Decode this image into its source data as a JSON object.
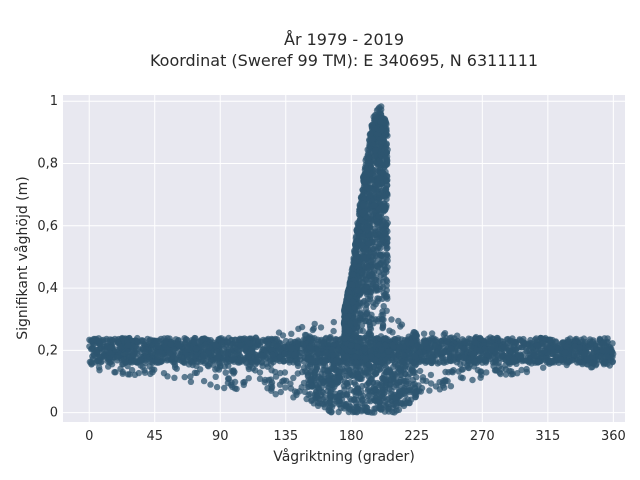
{
  "chart_data": {
    "type": "scatter",
    "title_lines": [
      "År 1979 - 2019",
      "Koordinat (Sweref 99 TM): E 340695, N 6311111"
    ],
    "xlabel": "Vågriktning (grader)",
    "ylabel": "Signifikant våghöjd (m)",
    "xlim": [
      -18,
      368
    ],
    "ylim": [
      -0.03,
      1.02
    ],
    "xticks": [
      0,
      45,
      90,
      135,
      180,
      225,
      270,
      315,
      360
    ],
    "yticks": [
      0,
      0.2,
      0.4,
      0.6,
      0.8,
      1
    ],
    "ytick_labels": [
      "0",
      "0,2",
      "0,4",
      "0,6",
      "0,8",
      "1"
    ],
    "grid": true,
    "marker_color": "#2e5570",
    "plot_bg": "#e8e8f0",
    "grid_color": "#ffffff",
    "ridge": {
      "x": [
        175,
        180,
        185,
        190,
        195,
        200,
        205
      ],
      "ymax": [
        0.33,
        0.44,
        0.64,
        0.83,
        0.95,
        0.99,
        0.93
      ]
    },
    "band_outline": {
      "x": [
        0,
        20,
        45,
        90,
        120,
        150,
        165,
        210,
        230,
        260,
        300,
        330,
        360
      ],
      "y_low": [
        0.14,
        0.12,
        0.12,
        0.08,
        0.06,
        0.03,
        0.0,
        0.0,
        0.06,
        0.1,
        0.13,
        0.14,
        0.15
      ],
      "y_high": [
        0.24,
        0.24,
        0.24,
        0.24,
        0.25,
        0.28,
        0.31,
        0.3,
        0.26,
        0.25,
        0.23,
        0.23,
        0.21
      ]
    }
  }
}
